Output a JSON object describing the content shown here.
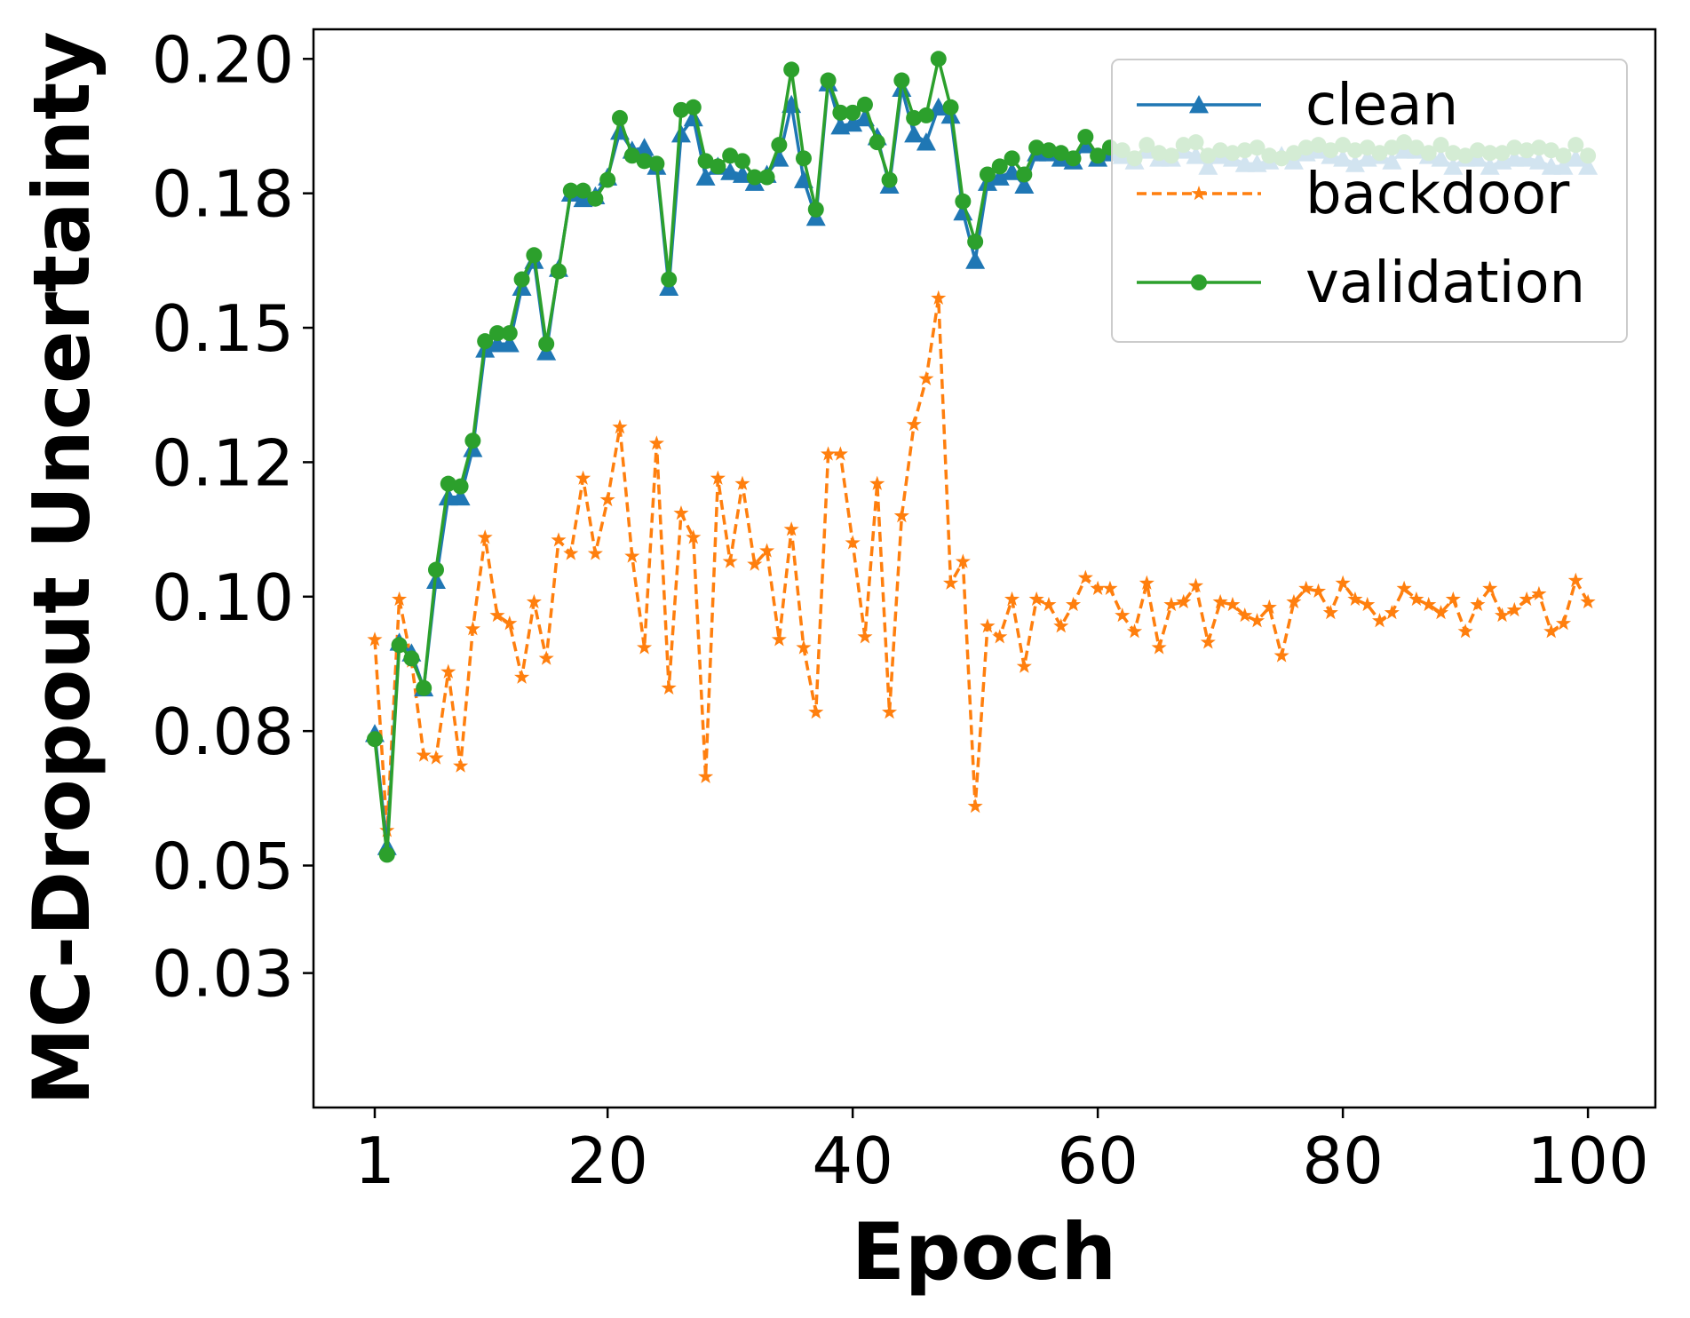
{
  "chart_data": {
    "type": "line",
    "xlabel": "Epoch",
    "ylabel": "MC-Dropout Uncertainty",
    "xlim": [
      -4,
      105.5
    ],
    "ylim": [
      0.005,
      0.2055
    ],
    "x_ticks": [
      1,
      20,
      40,
      60,
      80,
      100
    ],
    "x_tick_labels": [
      "1",
      "20",
      "40",
      "60",
      "80",
      "100"
    ],
    "y_ticks": [
      0.03,
      0.05,
      0.075,
      0.1,
      0.125,
      0.15,
      0.175,
      0.2
    ],
    "y_tick_labels": [
      "0.03",
      "0.05",
      "0.08",
      "0.10",
      "0.12",
      "0.15",
      "0.18",
      "0.20"
    ],
    "legend_position": "top-right",
    "x": [
      1,
      2,
      3,
      4,
      5,
      6,
      7,
      8,
      9,
      10,
      11,
      12,
      13,
      14,
      15,
      16,
      17,
      18,
      19,
      20,
      21,
      22,
      23,
      24,
      25,
      26,
      27,
      28,
      29,
      30,
      31,
      32,
      33,
      34,
      35,
      36,
      37,
      38,
      39,
      40,
      41,
      42,
      43,
      44,
      45,
      46,
      47,
      48,
      49,
      50,
      51,
      52,
      53,
      54,
      55,
      56,
      57,
      58,
      59,
      60,
      61,
      62,
      63,
      64,
      65,
      66,
      67,
      68,
      69,
      70,
      71,
      72,
      73,
      74,
      75,
      76,
      77,
      78,
      79,
      80,
      81,
      82,
      83,
      84,
      85,
      86,
      87,
      88,
      89,
      90,
      91,
      92,
      93,
      94,
      95,
      96,
      97,
      98,
      99,
      100
    ],
    "series": [
      {
        "name": "clean",
        "color": "#1f77b4",
        "marker": "triangle",
        "linestyle": "solid",
        "values": [
          0.0745,
          0.0535,
          0.0915,
          0.0895,
          0.083,
          0.103,
          0.1185,
          0.1185,
          0.1275,
          0.146,
          0.147,
          0.147,
          0.1575,
          0.1625,
          0.1455,
          0.161,
          0.175,
          0.174,
          0.1745,
          0.178,
          0.1865,
          0.183,
          0.1835,
          0.18,
          0.1575,
          0.186,
          0.189,
          0.178,
          0.18,
          0.179,
          0.1785,
          0.177,
          0.1785,
          0.1815,
          0.1915,
          0.1775,
          0.1705,
          0.1955,
          0.1875,
          0.188,
          0.189,
          0.1855,
          0.1765,
          0.1945,
          0.186,
          0.1845,
          0.191,
          0.1895,
          0.1715,
          0.1625,
          0.177,
          0.178,
          0.179,
          0.1765,
          0.1825,
          0.1825,
          0.1815,
          0.181,
          0.184,
          0.1815,
          0.1825,
          0.182,
          0.181,
          0.183,
          0.1815,
          0.1815,
          0.183,
          0.182,
          0.18,
          0.182,
          0.1815,
          0.1805,
          0.1805,
          0.181,
          0.182,
          0.181,
          0.1825,
          0.183,
          0.182,
          0.1815,
          0.1805,
          0.1815,
          0.182,
          0.181,
          0.183,
          0.183,
          0.182,
          0.1815,
          0.18,
          0.1815,
          0.1815,
          0.18,
          0.181,
          0.1815,
          0.1815,
          0.181,
          0.18,
          0.18,
          0.1815,
          0.18
        ]
      },
      {
        "name": "backdoor",
        "color": "#ff7f0e",
        "marker": "star",
        "linestyle": "dashed",
        "values": [
          0.092,
          0.0565,
          0.0995,
          0.088,
          0.0705,
          0.07,
          0.086,
          0.0685,
          0.094,
          0.111,
          0.0965,
          0.095,
          0.085,
          0.099,
          0.0885,
          0.1105,
          0.108,
          0.122,
          0.108,
          0.118,
          0.1315,
          0.1075,
          0.0905,
          0.1285,
          0.083,
          0.1155,
          0.111,
          0.0665,
          0.122,
          0.1065,
          0.121,
          0.106,
          0.1085,
          0.092,
          0.1125,
          0.0905,
          0.0785,
          0.1265,
          0.1265,
          0.11,
          0.0925,
          0.121,
          0.0785,
          0.115,
          0.132,
          0.1405,
          0.1555,
          0.1025,
          0.1065,
          0.061,
          0.0945,
          0.0925,
          0.0995,
          0.087,
          0.0995,
          0.0985,
          0.0945,
          0.0985,
          0.1035,
          0.1015,
          0.1015,
          0.0965,
          0.0935,
          0.1025,
          0.0905,
          0.0985,
          0.099,
          0.102,
          0.0915,
          0.099,
          0.0985,
          0.0965,
          0.0955,
          0.098,
          0.089,
          0.099,
          0.1015,
          0.101,
          0.097,
          0.1025,
          0.0995,
          0.0985,
          0.0955,
          0.097,
          0.1015,
          0.0995,
          0.0985,
          0.097,
          0.0995,
          0.0935,
          0.0985,
          0.1015,
          0.0965,
          0.0975,
          0.0995,
          0.1005,
          0.0935,
          0.095,
          0.103,
          0.099
        ]
      },
      {
        "name": "validation",
        "color": "#2ca02c",
        "marker": "circle",
        "linestyle": "solid",
        "values": [
          0.0735,
          0.052,
          0.091,
          0.0885,
          0.083,
          0.105,
          0.121,
          0.1205,
          0.129,
          0.1475,
          0.149,
          0.149,
          0.159,
          0.1635,
          0.147,
          0.1605,
          0.1755,
          0.1755,
          0.174,
          0.1775,
          0.189,
          0.182,
          0.181,
          0.1805,
          0.159,
          0.1905,
          0.191,
          0.181,
          0.18,
          0.182,
          0.181,
          0.178,
          0.178,
          0.184,
          0.198,
          0.1815,
          0.172,
          0.196,
          0.19,
          0.19,
          0.1915,
          0.1845,
          0.1775,
          0.196,
          0.189,
          0.1895,
          0.2,
          0.191,
          0.1735,
          0.166,
          0.1785,
          0.18,
          0.1815,
          0.1785,
          0.1835,
          0.183,
          0.1825,
          0.1815,
          0.1855,
          0.182,
          0.1835,
          0.183,
          0.1815,
          0.184,
          0.1825,
          0.182,
          0.184,
          0.1845,
          0.182,
          0.183,
          0.1825,
          0.183,
          0.1835,
          0.182,
          0.1815,
          0.1825,
          0.1835,
          0.184,
          0.183,
          0.184,
          0.183,
          0.1835,
          0.1825,
          0.1835,
          0.1845,
          0.1835,
          0.1825,
          0.184,
          0.1825,
          0.182,
          0.183,
          0.1825,
          0.1825,
          0.1835,
          0.183,
          0.1835,
          0.183,
          0.182,
          0.184,
          0.182
        ]
      }
    ]
  }
}
